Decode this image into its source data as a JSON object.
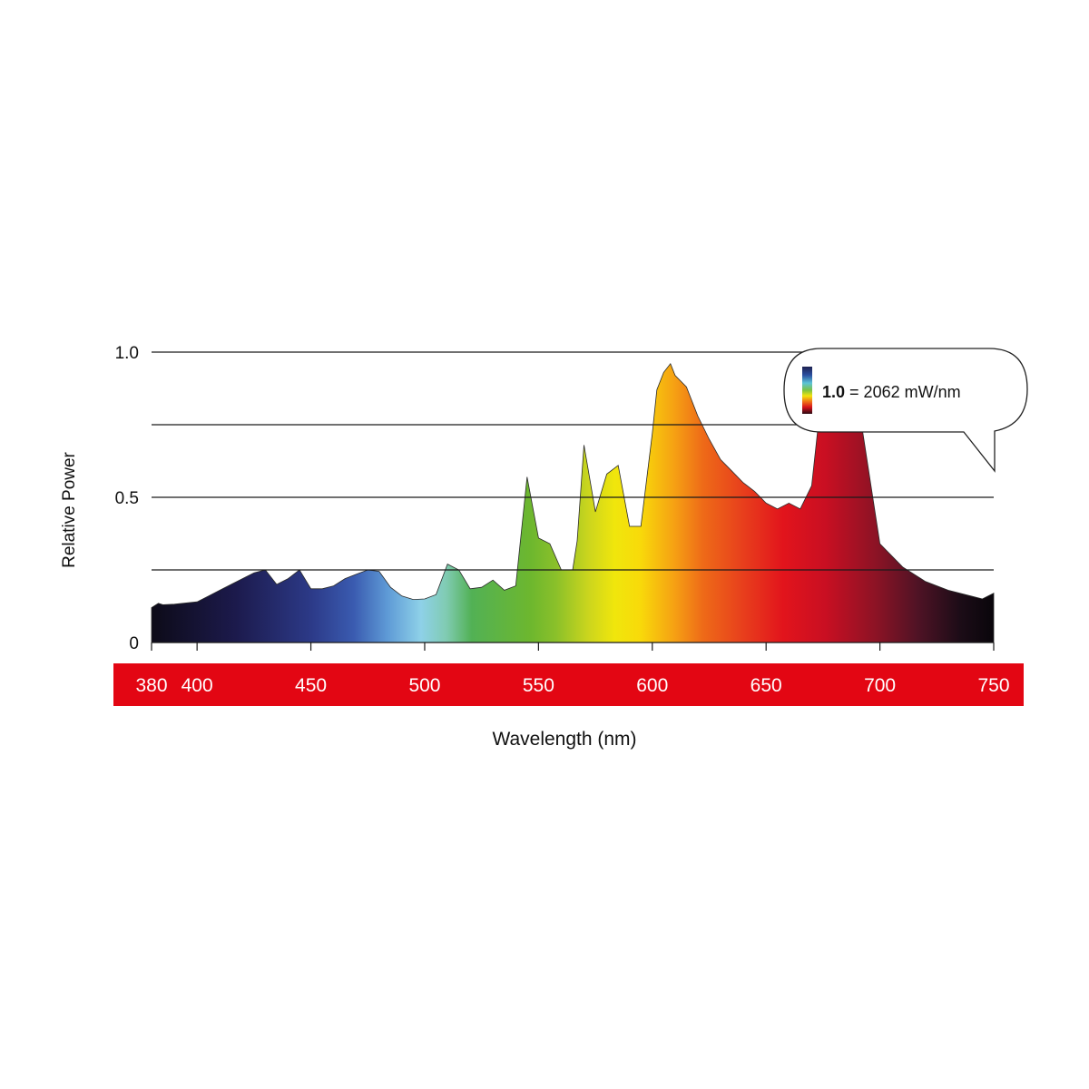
{
  "chart_data": {
    "type": "area",
    "xlabel": "Wavelength (nm)",
    "ylabel": "Relative Power",
    "xlim": [
      380,
      750
    ],
    "ylim": [
      0,
      1.0
    ],
    "y_ticks": [
      {
        "value": 0,
        "label": "0"
      },
      {
        "value": 0.5,
        "label": "0.5"
      },
      {
        "value": 1.0,
        "label": "1.0"
      }
    ],
    "gridlines": [
      0.25,
      0.5,
      0.75,
      1.0
    ],
    "x_ticks": [
      380,
      400,
      450,
      500,
      550,
      600,
      650,
      700,
      750
    ],
    "x_tick_labels": [
      "380",
      "400",
      "450",
      "500",
      "550",
      "600",
      "650",
      "700",
      "750"
    ],
    "x": [
      380,
      383,
      385,
      390,
      400,
      405,
      410,
      420,
      425,
      430,
      435,
      440,
      445,
      450,
      455,
      460,
      465,
      470,
      475,
      480,
      485,
      490,
      495,
      500,
      505,
      510,
      515,
      520,
      525,
      530,
      535,
      540,
      545,
      550,
      555,
      560,
      565,
      567,
      570,
      575,
      580,
      585,
      590,
      595,
      600,
      602,
      605,
      608,
      610,
      615,
      620,
      625,
      630,
      635,
      640,
      645,
      650,
      655,
      660,
      665,
      670,
      675,
      680,
      690,
      700,
      710,
      720,
      730,
      740,
      745,
      750
    ],
    "y": [
      0.12,
      0.135,
      0.13,
      0.132,
      0.14,
      0.16,
      0.18,
      0.22,
      0.24,
      0.25,
      0.2,
      0.22,
      0.25,
      0.185,
      0.185,
      0.195,
      0.22,
      0.235,
      0.25,
      0.245,
      0.19,
      0.16,
      0.148,
      0.15,
      0.165,
      0.27,
      0.25,
      0.185,
      0.19,
      0.215,
      0.18,
      0.195,
      0.57,
      0.36,
      0.34,
      0.25,
      0.25,
      0.35,
      0.68,
      0.45,
      0.58,
      0.61,
      0.4,
      0.4,
      0.72,
      0.87,
      0.93,
      0.96,
      0.92,
      0.88,
      0.78,
      0.7,
      0.63,
      0.59,
      0.55,
      0.52,
      0.48,
      0.46,
      0.48,
      0.46,
      0.54,
      0.9,
      0.92,
      0.85,
      0.34,
      0.26,
      0.21,
      0.18,
      0.16,
      0.15,
      0.17
    ],
    "band_color": "#e30613",
    "legend": {
      "value_label": "1.0",
      "value_text": "= 2062 mW/nm",
      "position": "top-right"
    }
  }
}
